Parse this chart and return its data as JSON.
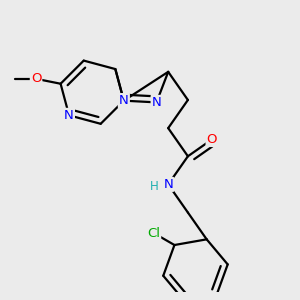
{
  "bg_color": "#ebebeb",
  "atom_colors": {
    "C": "#000000",
    "N": "#0000ff",
    "O": "#ff0000",
    "Cl": "#00aa00",
    "H": "#20b0b0"
  },
  "bond_color": "#000000",
  "bond_width": 1.6,
  "font_size_atom": 9.5,
  "font_size_h": 8.5
}
